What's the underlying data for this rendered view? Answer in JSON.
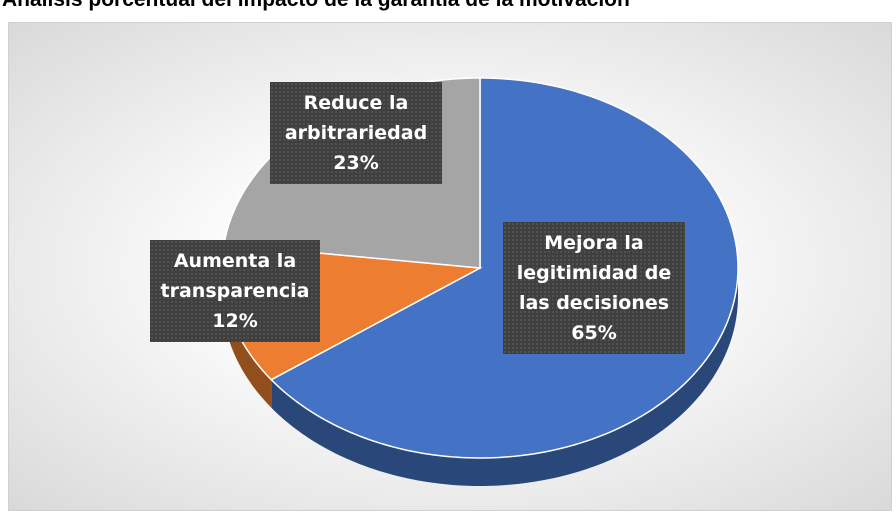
{
  "chart_data": {
    "type": "pie3d",
    "title": "Análisis porcentual del impacto de la garantía de la motivación",
    "categories": [
      "Mejora la legitimidad de las decisiones",
      "Aumenta la transparencia",
      "Reduce la arbitrariedad"
    ],
    "values": [
      65,
      12,
      23
    ],
    "value_labels": [
      "65%",
      "12%",
      "23%"
    ],
    "colors": [
      "#4472c4",
      "#ed7d31",
      "#a5a5a5"
    ]
  }
}
